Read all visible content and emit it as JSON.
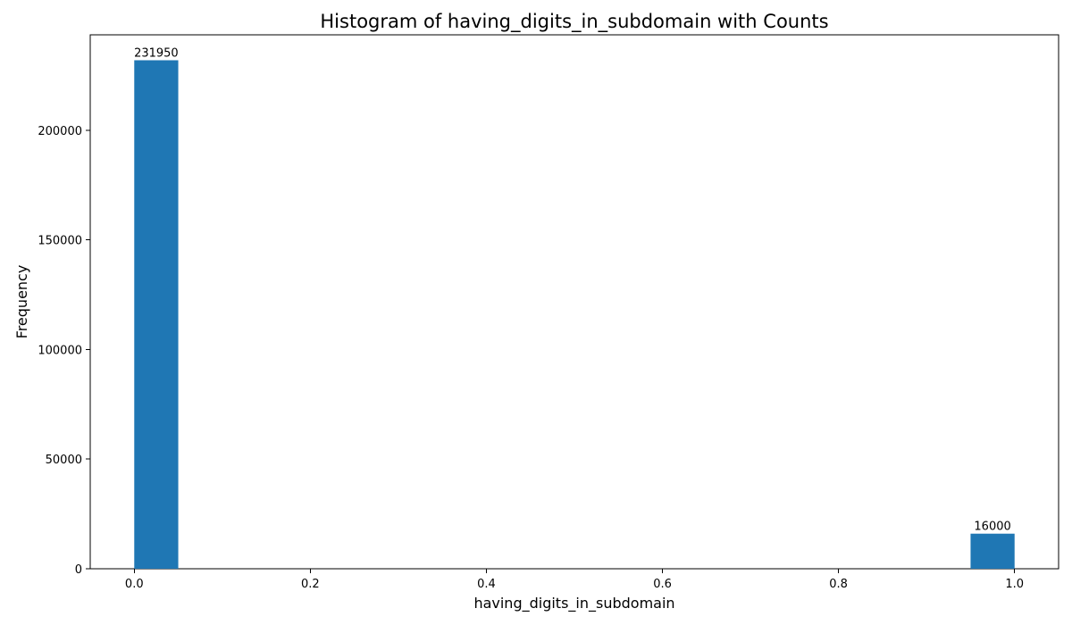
{
  "chart_data": {
    "type": "bar",
    "title": "Histogram of having_digits_in_subdomain with Counts",
    "xlabel": "having_digits_in_subdomain",
    "ylabel": "Frequency",
    "bins": [
      {
        "x_start": 0.0,
        "x_end": 0.05,
        "count": 231950,
        "label": "231950"
      },
      {
        "x_start": 0.95,
        "x_end": 1.0,
        "count": 16000,
        "label": "16000"
      }
    ],
    "xlim": [
      -0.05,
      1.05
    ],
    "ylim": [
      0,
      243547.5
    ],
    "x_ticks": [
      0.0,
      0.2,
      0.4,
      0.6,
      0.8,
      1.0
    ],
    "x_tick_labels": [
      "0.0",
      "0.2",
      "0.4",
      "0.6",
      "0.8",
      "1.0"
    ],
    "y_ticks": [
      0,
      50000,
      100000,
      150000,
      200000
    ],
    "y_tick_labels": [
      "0",
      "50000",
      "100000",
      "150000",
      "200000"
    ],
    "bar_color": "#1f77b4",
    "grid": false,
    "legend": false
  }
}
